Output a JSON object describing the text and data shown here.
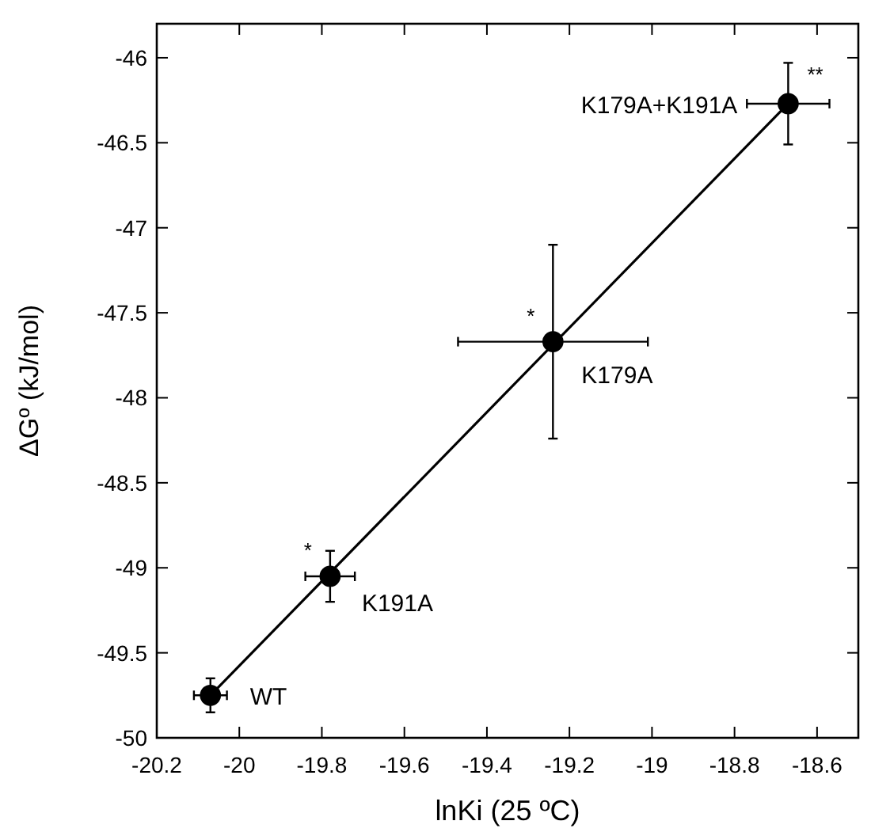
{
  "chart_data": {
    "type": "scatter",
    "xlabel": "lnKi (25 ºC)",
    "ylabel": "ΔGº (kJ/mol)",
    "xlim": [
      -20.2,
      -18.5
    ],
    "ylim": [
      -50,
      -45.8
    ],
    "xticks": [
      -20.2,
      -20,
      -19.8,
      -19.6,
      -19.4,
      -19.2,
      -19,
      -18.8,
      -18.6
    ],
    "yticks": [
      -50,
      -49.5,
      -49,
      -48.5,
      -48,
      -47.5,
      -47,
      -46.5,
      -46
    ],
    "grid": false,
    "series": [
      {
        "marker": "circle",
        "color": "#000000",
        "x": [
          -20.07,
          -19.78,
          -19.24,
          -18.67
        ],
        "values": [
          -49.75,
          -49.05,
          -47.67,
          -46.27
        ],
        "errors": [
          0.1,
          0.15,
          0.57,
          0.24
        ],
        "xerrors": [
          0.04,
          0.06,
          0.23,
          0.1
        ]
      },
      {
        "type": "line",
        "marker": "none",
        "color": "#000000",
        "x": [
          -20.07,
          -18.67
        ],
        "values": [
          -49.75,
          -46.27
        ]
      }
    ],
    "annotations": [
      {
        "text": "WT",
        "x": -20.07,
        "y": -49.75
      },
      {
        "text": "K191A",
        "x": -19.78,
        "y": -49.05
      },
      {
        "text": "K179A",
        "x": -19.24,
        "y": -47.67
      },
      {
        "text": "K179A+K191A",
        "x": -18.67,
        "y": -46.27
      },
      {
        "text": "*",
        "x": -19.78,
        "y": -49.05
      },
      {
        "text": "*",
        "x": -19.24,
        "y": -47.67
      },
      {
        "text": "**",
        "x": -18.67,
        "y": -46.27
      }
    ]
  }
}
